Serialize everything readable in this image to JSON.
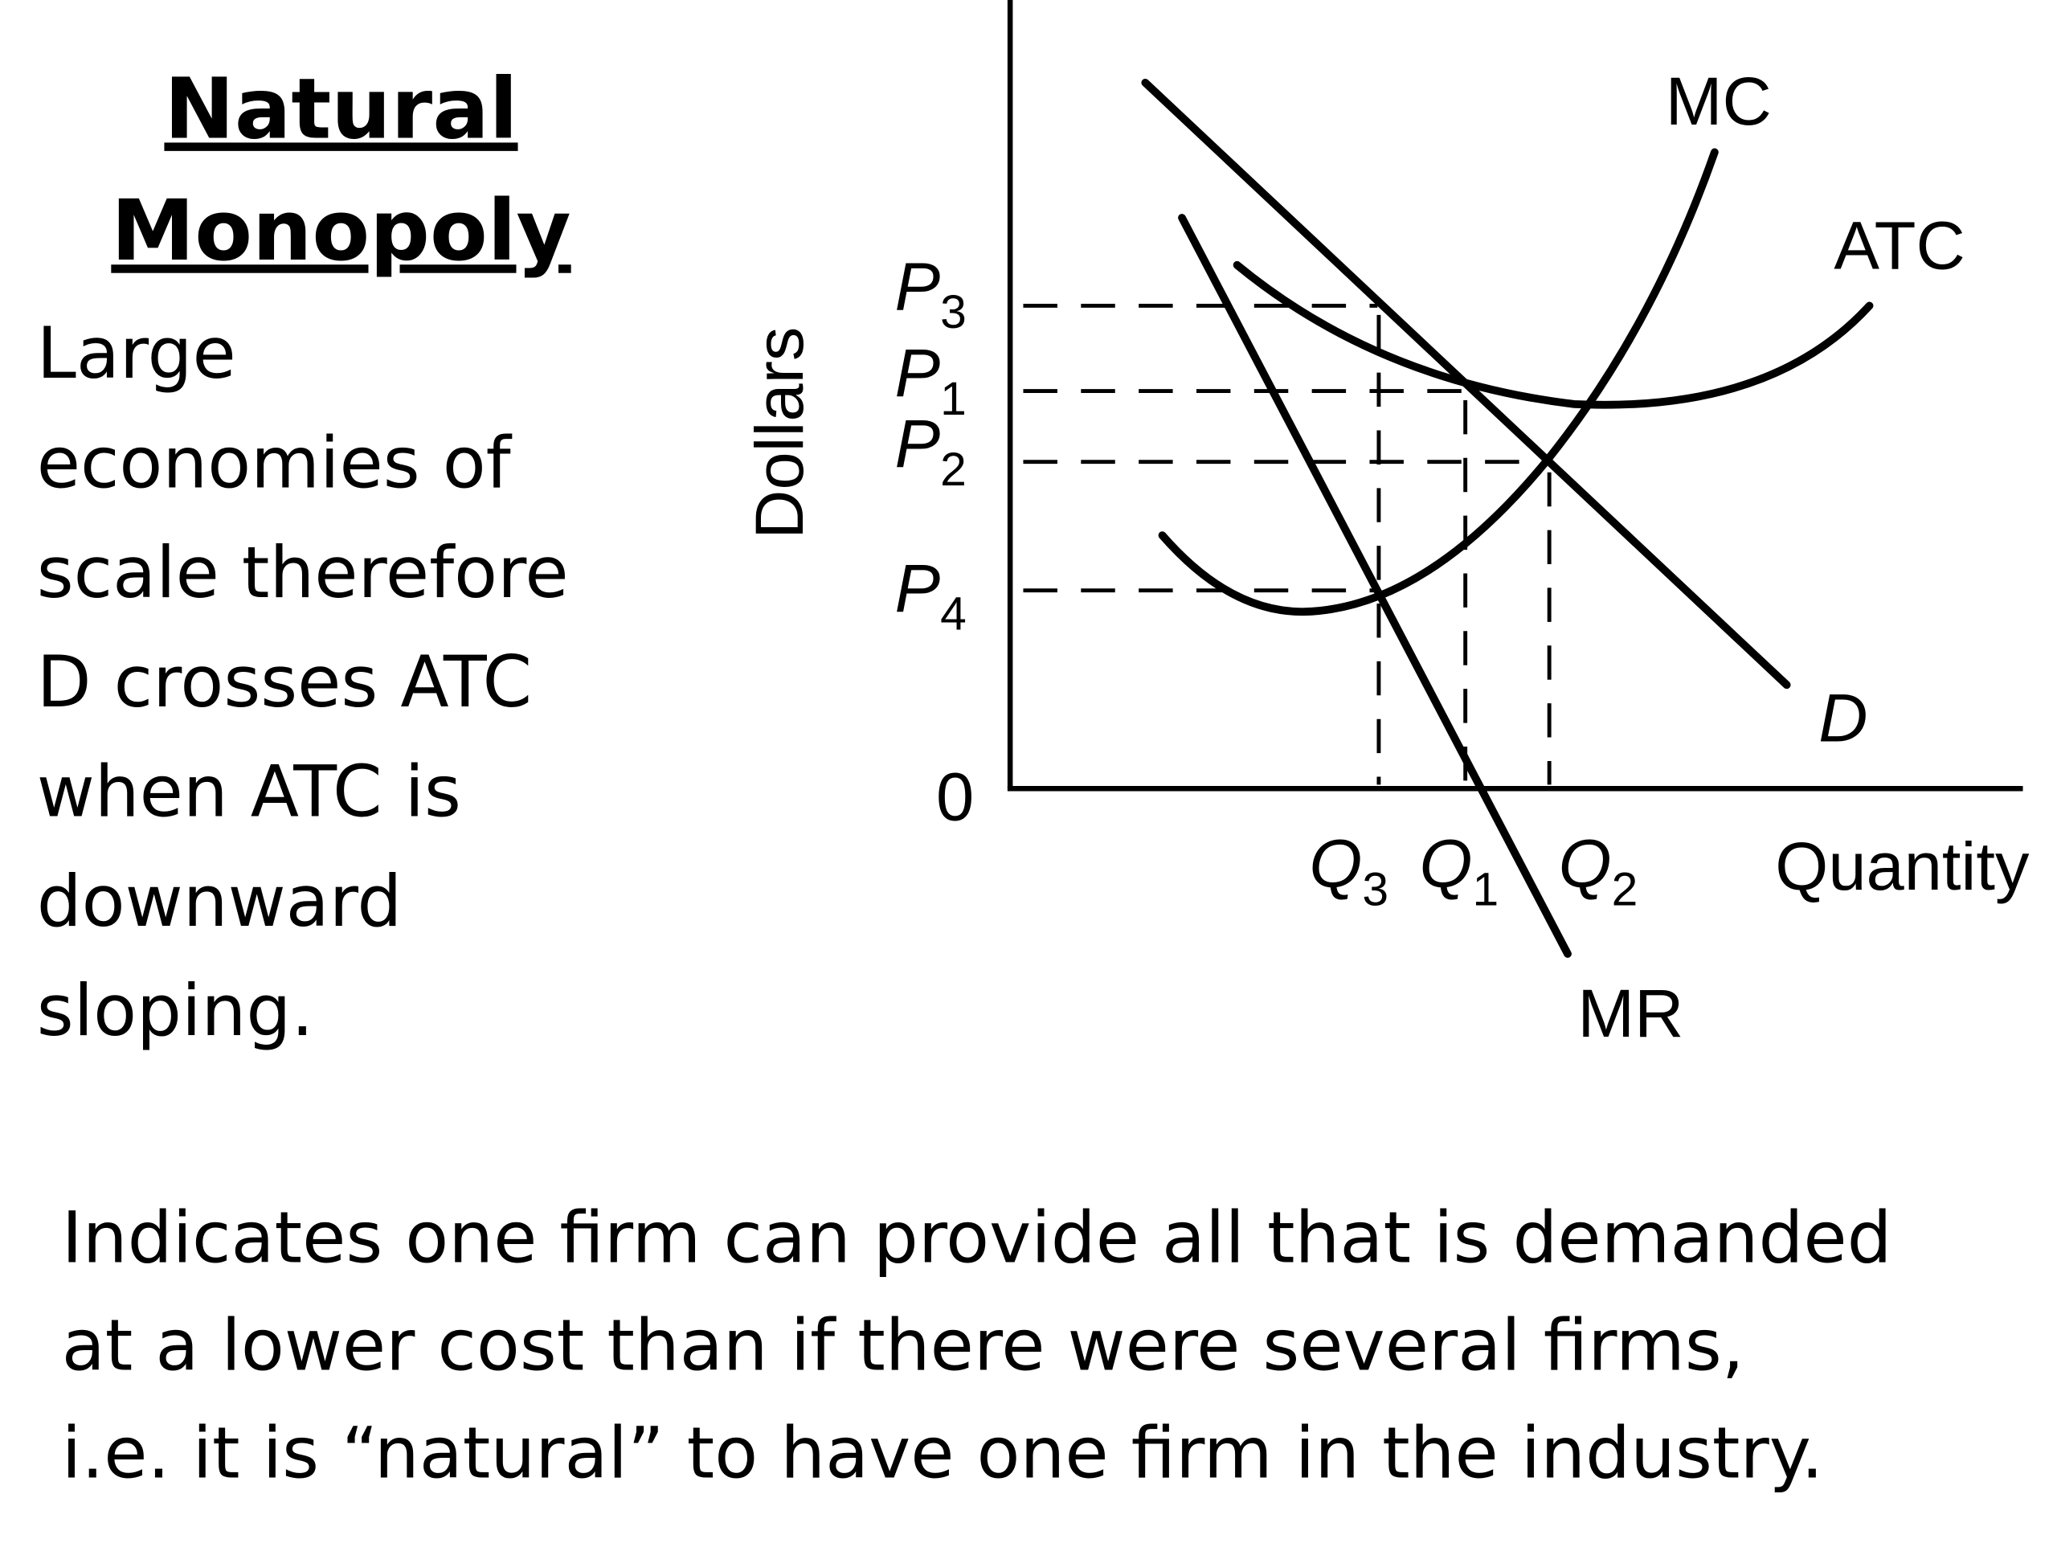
{
  "header": {
    "title_lines": [
      "Natural",
      "Monopoly"
    ]
  },
  "description_lines": [
    "Large",
    "economies of",
    "scale therefore",
    "D crosses ATC",
    "when ATC is",
    "downward",
    "sloping."
  ],
  "graph": {
    "y_axis_label": "Dollars",
    "x_axis_label": "Quantity",
    "origin_label": "0",
    "curves": {
      "mc": "MC",
      "atc": "ATC",
      "demand": "D",
      "mr": "MR"
    },
    "price_labels": [
      {
        "main": "P",
        "sub": "3"
      },
      {
        "main": "P",
        "sub": "1"
      },
      {
        "main": "P",
        "sub": "2"
      },
      {
        "main": "P",
        "sub": "4"
      }
    ],
    "quantity_labels": [
      {
        "main": "Q",
        "sub": "3"
      },
      {
        "main": "Q",
        "sub": "1"
      },
      {
        "main": "Q",
        "sub": "2"
      }
    ]
  },
  "footer_lines": [
    "Indicates one firm can provide all that is demanded",
    "at a lower cost than if there were several firms,",
    "i.e. it is “natural” to have one firm in the industry."
  ]
}
